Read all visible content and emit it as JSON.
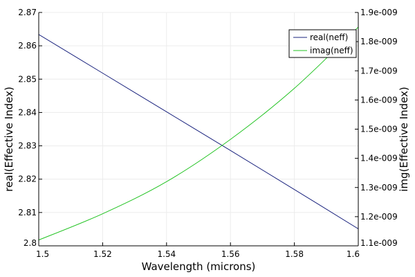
{
  "chart_data": {
    "type": "line",
    "title": "",
    "xlabel": "Wavelength (microns)",
    "ylabel_left": "real(Effective Index)",
    "ylabel_right": "img(Effective Index)",
    "xlim": [
      1.5,
      1.6
    ],
    "ylim_left": [
      2.8,
      2.87
    ],
    "ylim_right": [
      1.1e-09,
      1.9e-09
    ],
    "x_ticks": [
      1.5,
      1.52,
      1.54,
      1.56,
      1.58,
      1.6
    ],
    "x_tick_labels": [
      "1.5",
      "1.52",
      "1.54",
      "1.56",
      "1.58",
      "1.6"
    ],
    "y_left_ticks": [
      2.8,
      2.81,
      2.82,
      2.83,
      2.84,
      2.85,
      2.86,
      2.87
    ],
    "y_left_tick_labels": [
      "2.8",
      "2.81",
      "2.82",
      "2.83",
      "2.84",
      "2.85",
      "2.86",
      "2.87"
    ],
    "y_right_ticks": [
      1.1e-09,
      1.2e-09,
      1.3e-09,
      1.4e-09,
      1.5e-09,
      1.6e-09,
      1.7e-09,
      1.8e-09,
      1.9e-09
    ],
    "y_right_tick_labels": [
      "1.1e-009",
      "1.2e-009",
      "1.3e-009",
      "1.4e-009",
      "1.5e-009",
      "1.6e-009",
      "1.7e-009",
      "1.8e-009",
      "1.9e-009"
    ],
    "grid": true,
    "legend_position": "top-right",
    "series": [
      {
        "name": "real(neff)",
        "axis": "left",
        "color": "#1a237e",
        "x": [
          1.5,
          1.52,
          1.54,
          1.56,
          1.58,
          1.6
        ],
        "y": [
          2.8634,
          2.8518,
          2.8402,
          2.8286,
          2.8169,
          2.8051
        ]
      },
      {
        "name": "imag(neff)",
        "axis": "right",
        "color": "#22c322",
        "x": [
          1.5,
          1.52,
          1.54,
          1.56,
          1.58,
          1.6
        ],
        "y": [
          1.12e-09,
          1.21e-09,
          1.32e-09,
          1.465e-09,
          1.64e-09,
          1.85e-09
        ]
      }
    ]
  }
}
